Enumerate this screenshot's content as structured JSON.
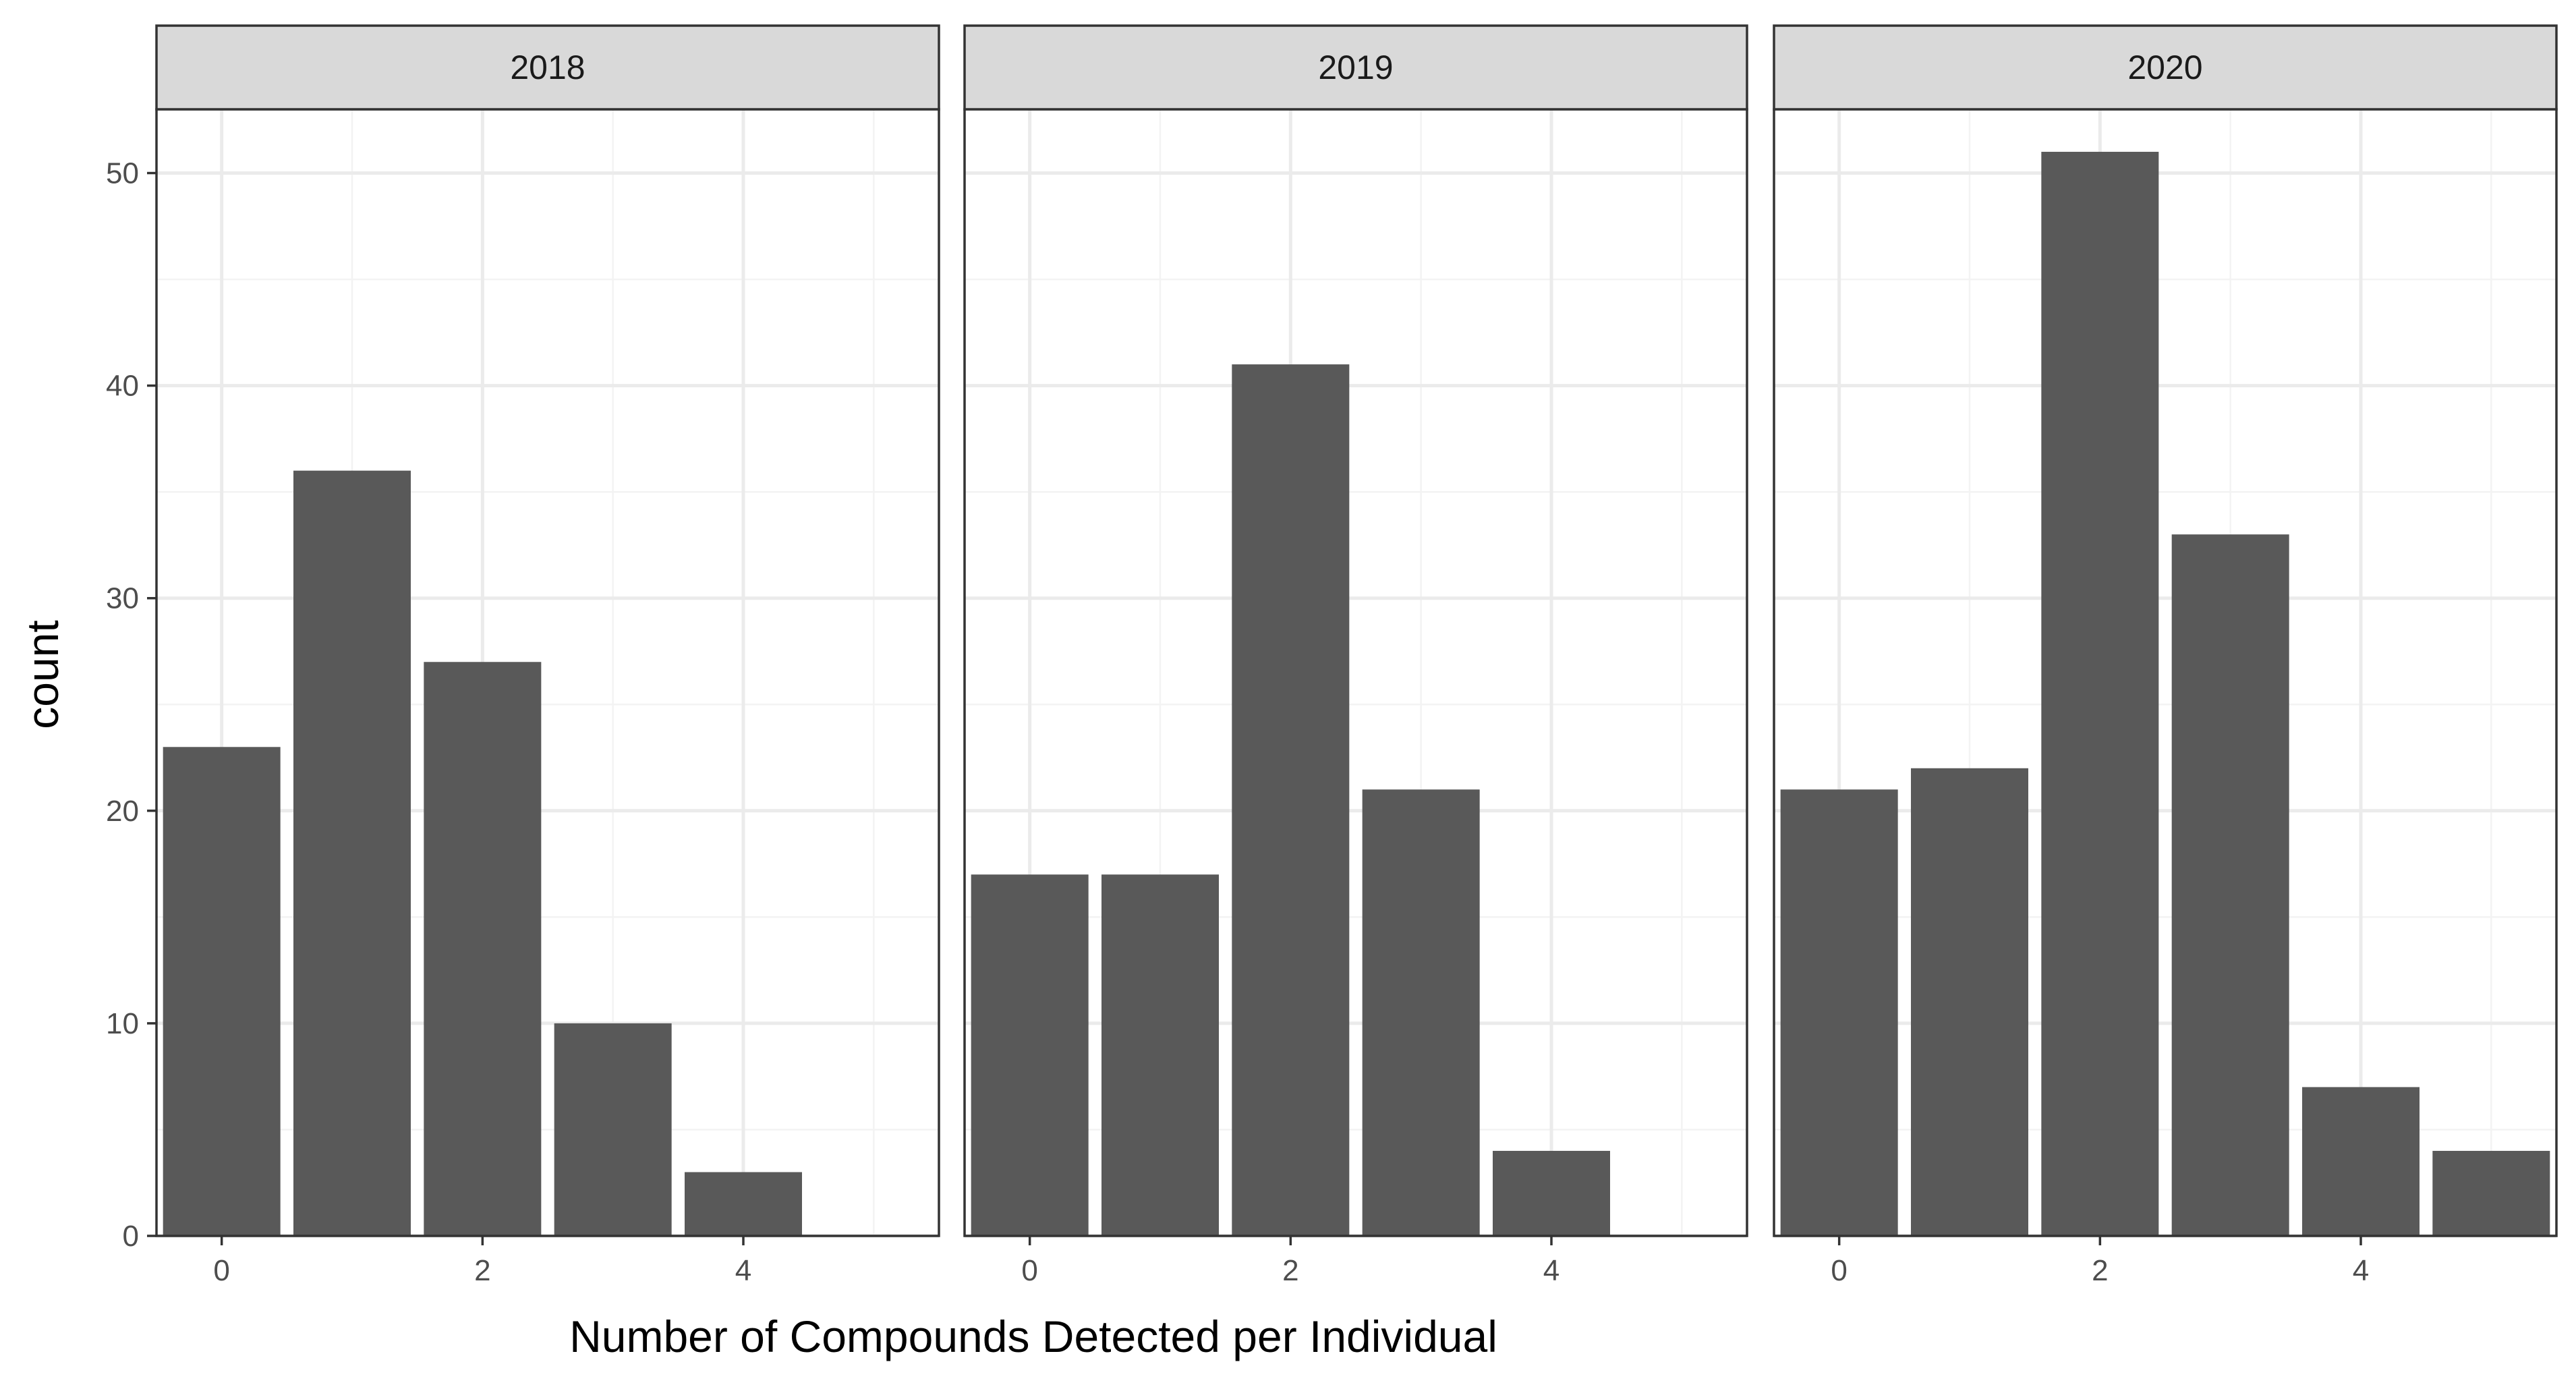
{
  "chart_data": {
    "type": "bar",
    "xlabel": "Number of Compounds Detected per Individual",
    "ylabel": "count",
    "xlim": [
      -0.5,
      5.5
    ],
    "ylim": [
      0,
      53
    ],
    "x_ticks": [
      "0",
      "2",
      "4"
    ],
    "y_ticks": [
      "0",
      "10",
      "20",
      "30",
      "40",
      "50"
    ],
    "grid": true,
    "legend": "none",
    "facets": [
      {
        "label": "2018",
        "x": [
          0,
          1,
          2,
          3,
          4
        ],
        "values": [
          23,
          36,
          27,
          10,
          3
        ]
      },
      {
        "label": "2019",
        "x": [
          0,
          1,
          2,
          3,
          4
        ],
        "values": [
          17,
          17,
          41,
          21,
          4
        ]
      },
      {
        "label": "2020",
        "x": [
          0,
          1,
          2,
          3,
          4,
          5
        ],
        "values": [
          21,
          22,
          51,
          33,
          7,
          4
        ]
      }
    ],
    "bar_color": "#595959",
    "strip_color": "#d9d9d9"
  }
}
